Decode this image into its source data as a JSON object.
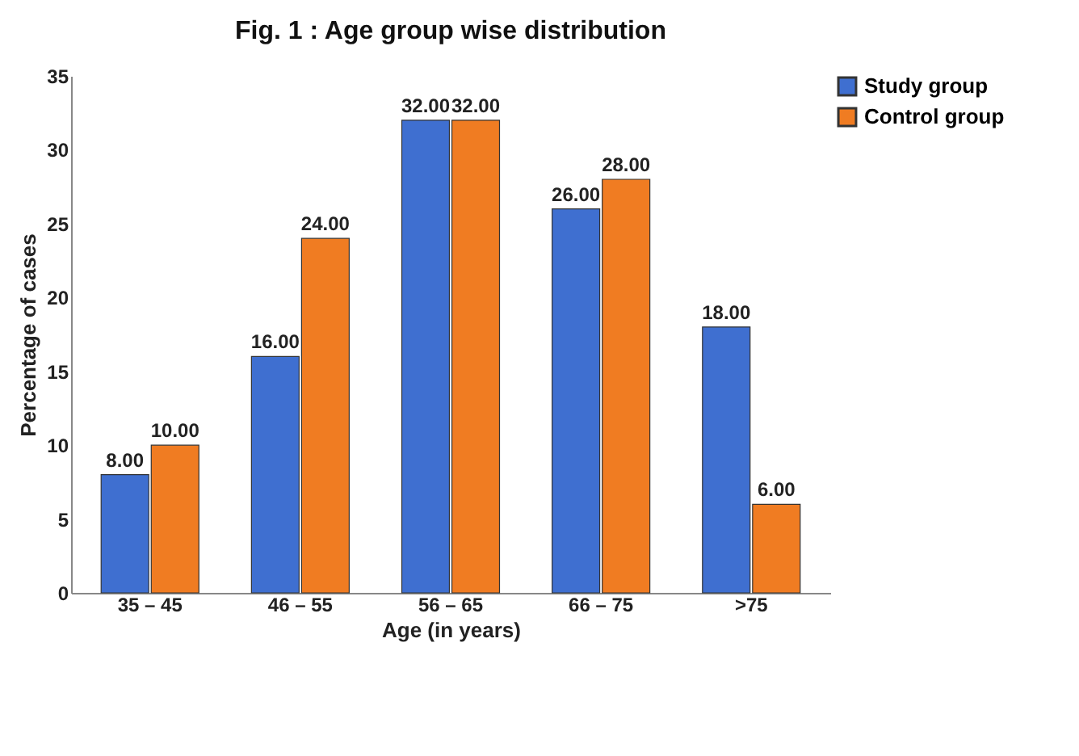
{
  "chart_data": {
    "type": "bar",
    "title": "Fig. 1 : Age group wise distribution",
    "xlabel": "Age (in years)",
    "ylabel": "Percentage of cases",
    "categories": [
      "35 – 45",
      "46 – 55",
      "56 – 65",
      "66 – 75",
      ">75"
    ],
    "series": [
      {
        "name": "Study group",
        "color": "#3f6fd0",
        "values": [
          8,
          16,
          32,
          26,
          18
        ],
        "value_labels": [
          "8.00",
          "16.00",
          "32.00",
          "26.00",
          "18.00"
        ]
      },
      {
        "name": "Control group",
        "color": "#f07c22",
        "values": [
          10,
          24,
          32,
          28,
          6
        ],
        "value_labels": [
          "10.00",
          "24.00",
          "32.00",
          "28.00",
          "6.00"
        ]
      }
    ],
    "ylim": [
      0,
      35
    ],
    "yticks": [
      0,
      5,
      10,
      15,
      20,
      25,
      30,
      35
    ],
    "grid": false,
    "legend": "right"
  }
}
